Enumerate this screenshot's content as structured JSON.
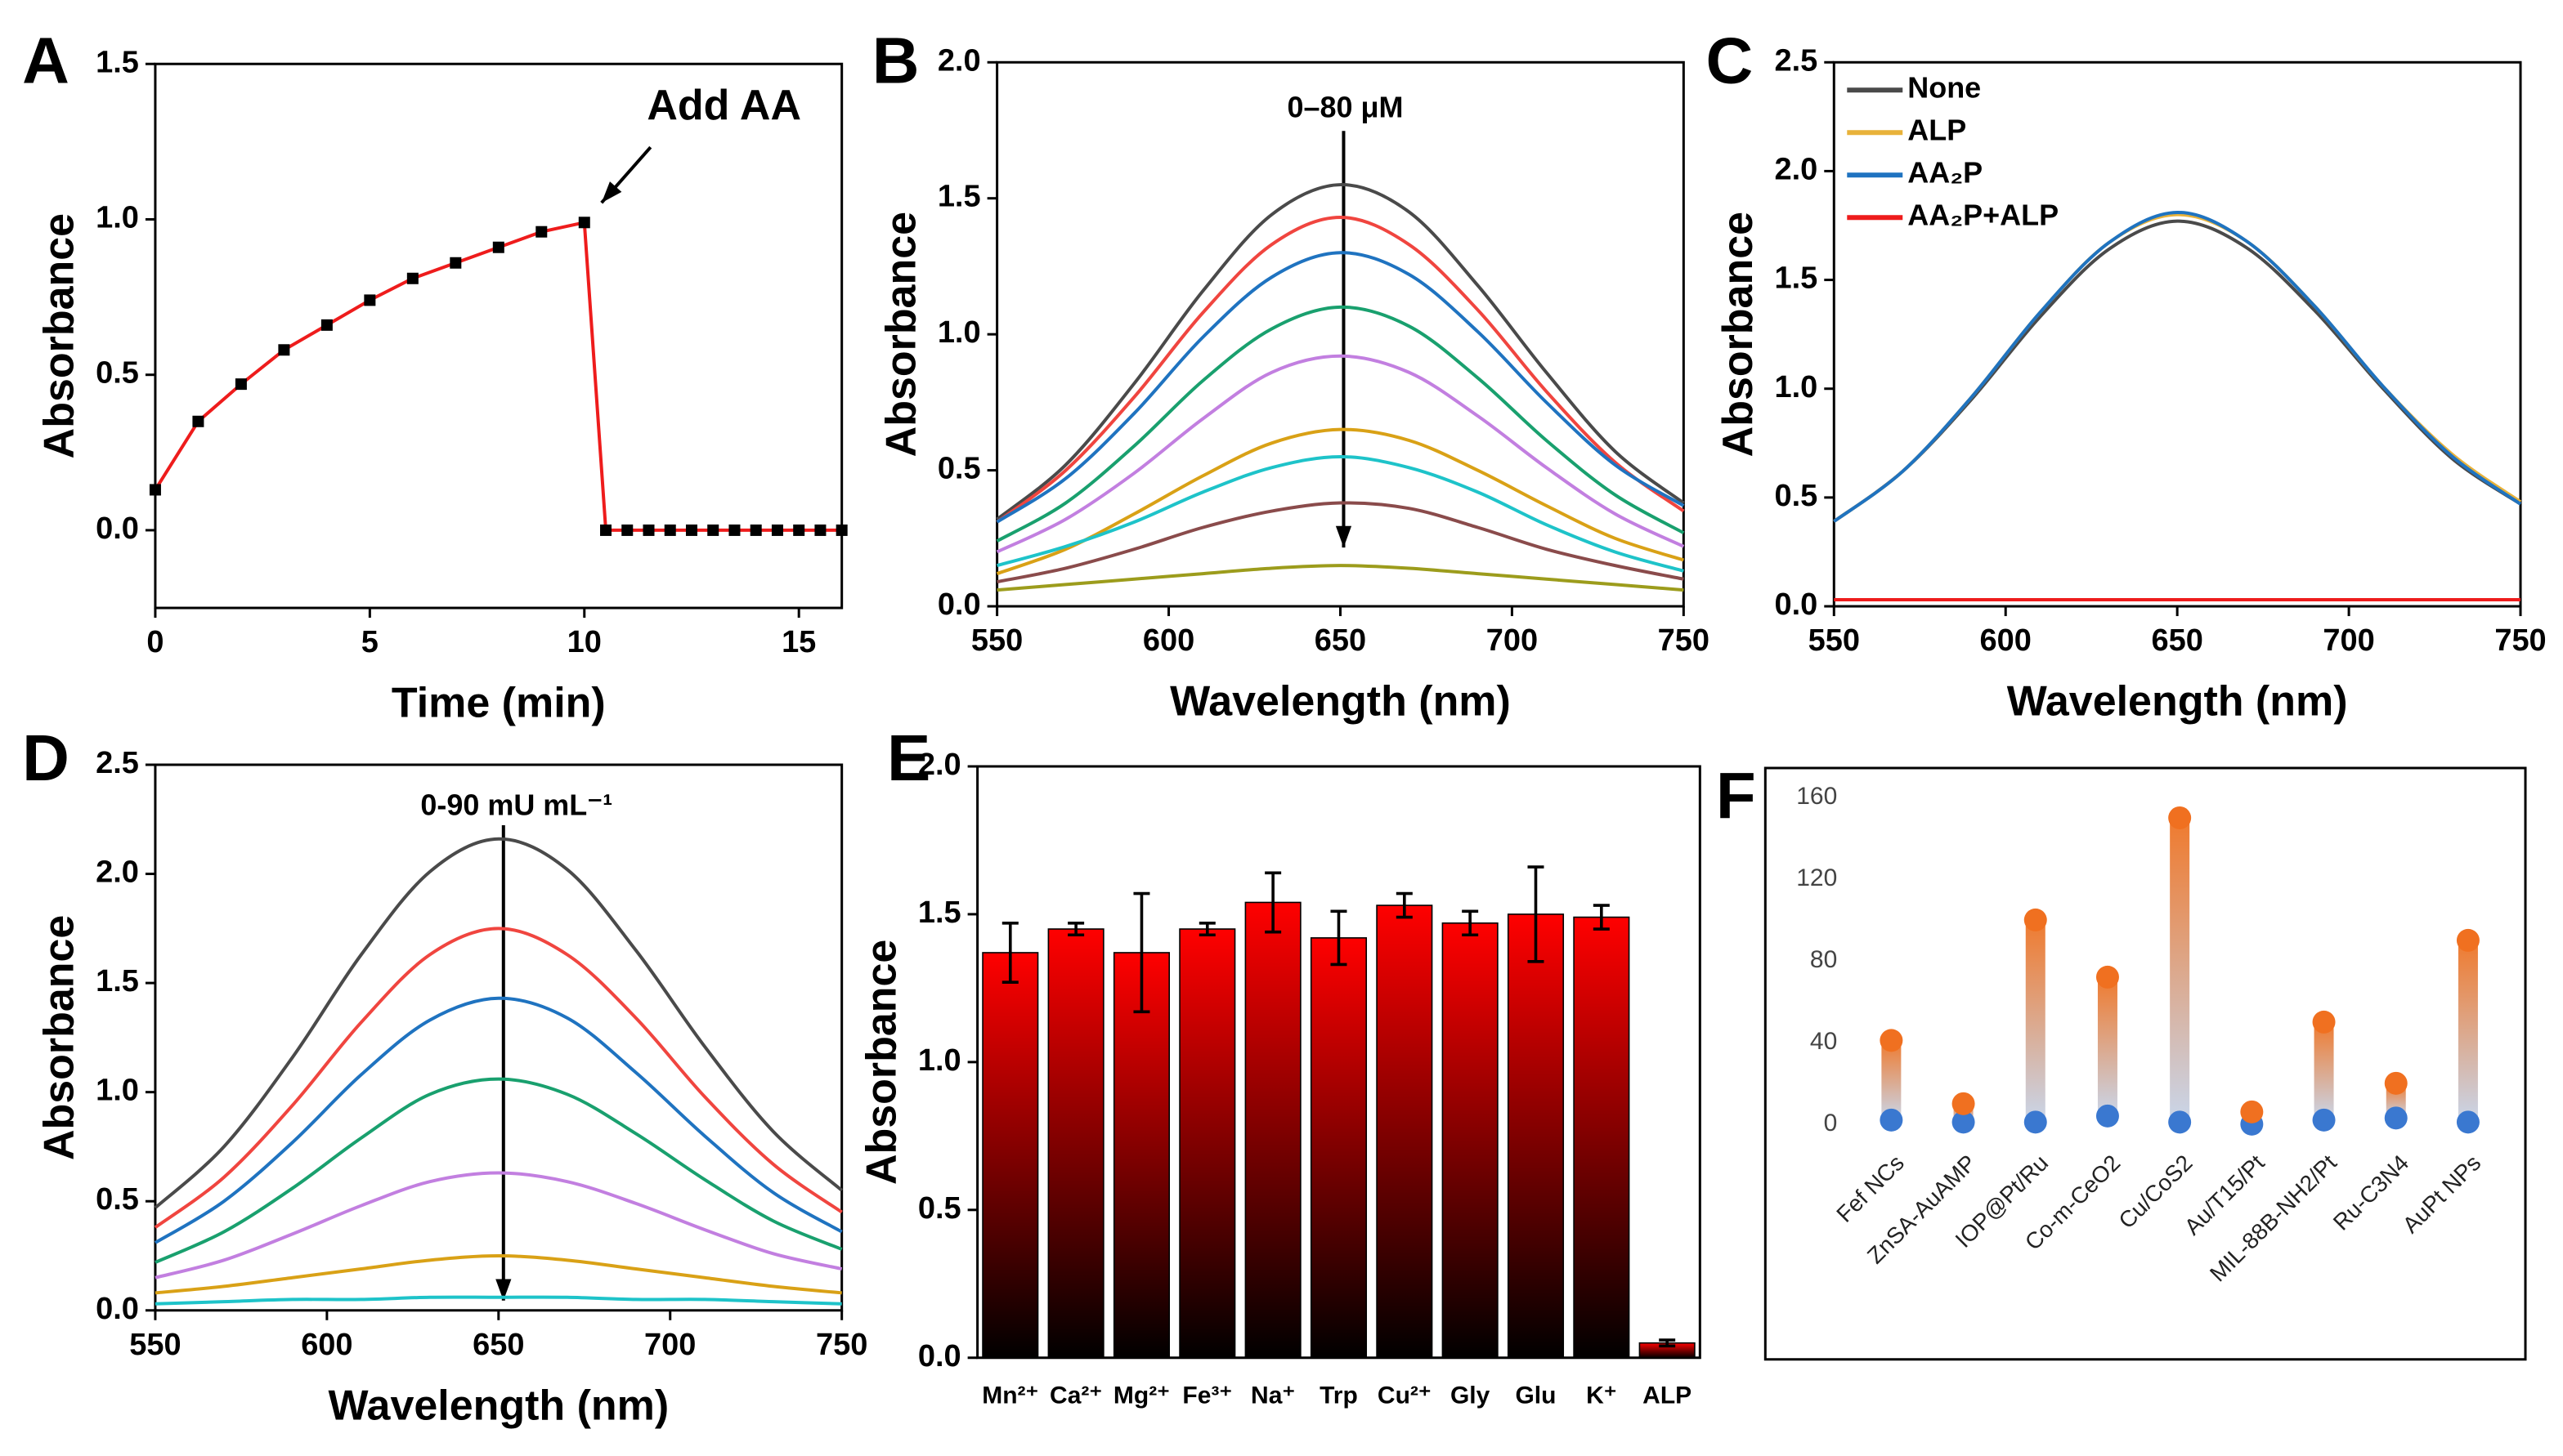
{
  "chart_data": [
    {
      "type": "line",
      "label": "A",
      "xlabel": "Time (min)",
      "ylabel": "Absorbance",
      "annotation": "Add AA",
      "markers": true,
      "marker_color": "#000000",
      "x": [
        0,
        1,
        2,
        3,
        4,
        5,
        6,
        7,
        8,
        9,
        10,
        10.5,
        11,
        11.5,
        12,
        12.5,
        13,
        13.5,
        14,
        14.5,
        15,
        15.5,
        16
      ],
      "series": [
        {
          "color": "#ee1c1c",
          "values": [
            0.13,
            0.35,
            0.47,
            0.58,
            0.66,
            0.74,
            0.81,
            0.86,
            0.91,
            0.96,
            0.99,
            0,
            0,
            0,
            0,
            0,
            0,
            0,
            0,
            0,
            0,
            0,
            0
          ]
        }
      ],
      "xlim": [
        0,
        16
      ],
      "xticks": [
        0,
        5,
        10,
        15
      ],
      "ylim": [
        -0.25,
        1.5
      ],
      "yticks": [
        {
          "value": 0,
          "label": "0.0"
        },
        0.5,
        {
          "value": 1,
          "label": "1.0"
        },
        1.5
      ]
    },
    {
      "type": "line",
      "label": "B",
      "xlabel": "Wavelength (nm)",
      "ylabel": "Absorbance",
      "annotation": "0–80 μM",
      "smooth": true,
      "x": [
        550,
        570,
        590,
        610,
        630,
        650,
        670,
        690,
        710,
        730,
        750
      ],
      "series": [
        {
          "color": "#4a4a4a",
          "values": [
            0.32,
            0.52,
            0.82,
            1.16,
            1.44,
            1.55,
            1.45,
            1.18,
            0.86,
            0.57,
            0.38
          ]
        },
        {
          "color": "#f0453f",
          "values": [
            0.31,
            0.5,
            0.77,
            1.08,
            1.33,
            1.43,
            1.33,
            1.09,
            0.79,
            0.53,
            0.35
          ]
        },
        {
          "color": "#1f73c0",
          "values": [
            0.31,
            0.47,
            0.71,
            0.99,
            1.21,
            1.3,
            1.22,
            1.01,
            0.75,
            0.52,
            0.37
          ]
        },
        {
          "color": "#19a06e",
          "values": [
            0.24,
            0.38,
            0.59,
            0.83,
            1.02,
            1.1,
            1.03,
            0.84,
            0.61,
            0.41,
            0.27
          ]
        },
        {
          "color": "#c27fe0",
          "values": [
            0.2,
            0.32,
            0.49,
            0.69,
            0.86,
            0.92,
            0.86,
            0.7,
            0.51,
            0.34,
            0.22
          ]
        },
        {
          "color": "#d9a116",
          "values": [
            0.12,
            0.21,
            0.34,
            0.48,
            0.6,
            0.65,
            0.61,
            0.5,
            0.37,
            0.25,
            0.17
          ]
        },
        {
          "color": "#1ec3c9",
          "values": [
            0.15,
            0.22,
            0.31,
            0.42,
            0.51,
            0.55,
            0.51,
            0.42,
            0.3,
            0.2,
            0.13
          ]
        },
        {
          "color": "#8a4b4b",
          "values": [
            0.09,
            0.14,
            0.21,
            0.29,
            0.35,
            0.38,
            0.36,
            0.29,
            0.21,
            0.15,
            0.1
          ]
        },
        {
          "color": "#9c9c1c",
          "values": [
            0.06,
            0.08,
            0.1,
            0.12,
            0.14,
            0.15,
            0.14,
            0.12,
            0.1,
            0.08,
            0.06
          ]
        }
      ],
      "xlim": [
        550,
        750
      ],
      "xticks": [
        550,
        600,
        650,
        700,
        750
      ],
      "ylim": [
        0,
        2
      ],
      "yticks": [
        {
          "value": 0,
          "label": "0.0"
        },
        0.5,
        {
          "value": 1,
          "label": "1.0"
        },
        1.5,
        {
          "value": 2,
          "label": "2.0"
        }
      ]
    },
    {
      "type": "line",
      "label": "C",
      "xlabel": "Wavelength (nm)",
      "ylabel": "Absorbance",
      "smooth": true,
      "legend": "upper left",
      "x": [
        550,
        570,
        590,
        610,
        630,
        650,
        670,
        690,
        710,
        730,
        750
      ],
      "series": [
        {
          "name": "None",
          "color": "#4a4a4a",
          "values": [
            0.39,
            0.62,
            0.95,
            1.33,
            1.64,
            1.77,
            1.65,
            1.36,
            1.0,
            0.68,
            0.47
          ]
        },
        {
          "name": "ALP",
          "color": "#e8b23a",
          "values": [
            0.39,
            0.62,
            0.96,
            1.35,
            1.67,
            1.8,
            1.68,
            1.38,
            1.01,
            0.7,
            0.48
          ]
        },
        {
          "name": "AA₂P",
          "color": "#1f73c0",
          "values": [
            0.39,
            0.62,
            0.96,
            1.35,
            1.67,
            1.81,
            1.68,
            1.38,
            1.01,
            0.69,
            0.47
          ]
        },
        {
          "name": "AA₂P+ALP",
          "color": "#ee1c1c",
          "values": [
            0.03,
            0.03,
            0.03,
            0.03,
            0.03,
            0.03,
            0.03,
            0.03,
            0.03,
            0.03,
            0.03
          ]
        }
      ],
      "xlim": [
        550,
        750
      ],
      "xticks": [
        550,
        600,
        650,
        700,
        750
      ],
      "ylim": [
        0,
        2.5
      ],
      "yticks": [
        {
          "value": 0,
          "label": "0.0"
        },
        0.5,
        {
          "value": 1,
          "label": "1.0"
        },
        1.5,
        {
          "value": 2,
          "label": "2.0"
        },
        2.5
      ]
    },
    {
      "type": "line",
      "label": "D",
      "xlabel": "Wavelength (nm)",
      "ylabel": "Absorbance",
      "annotation": "0-90 mU mL⁻¹",
      "smooth": true,
      "x": [
        550,
        570,
        590,
        610,
        630,
        650,
        670,
        690,
        710,
        730,
        750
      ],
      "series": [
        {
          "color": "#4a4a4a",
          "values": [
            0.47,
            0.75,
            1.16,
            1.63,
            2.01,
            2.16,
            2.02,
            1.65,
            1.21,
            0.82,
            0.55
          ]
        },
        {
          "color": "#f0453f",
          "values": [
            0.38,
            0.61,
            0.94,
            1.32,
            1.63,
            1.75,
            1.63,
            1.34,
            0.98,
            0.67,
            0.45
          ]
        },
        {
          "color": "#1f73c0",
          "values": [
            0.31,
            0.5,
            0.77,
            1.08,
            1.33,
            1.43,
            1.34,
            1.09,
            0.8,
            0.54,
            0.36
          ]
        },
        {
          "color": "#19a06e",
          "values": [
            0.22,
            0.36,
            0.56,
            0.79,
            0.99,
            1.06,
            0.99,
            0.81,
            0.6,
            0.41,
            0.28
          ]
        },
        {
          "color": "#c27fe0",
          "values": [
            0.15,
            0.23,
            0.35,
            0.48,
            0.59,
            0.63,
            0.59,
            0.49,
            0.37,
            0.26,
            0.19
          ]
        },
        {
          "color": "#d9a116",
          "values": [
            0.08,
            0.11,
            0.15,
            0.19,
            0.23,
            0.25,
            0.23,
            0.19,
            0.15,
            0.11,
            0.08
          ]
        },
        {
          "color": "#1ec3c9",
          "values": [
            0.03,
            0.04,
            0.05,
            0.05,
            0.06,
            0.06,
            0.06,
            0.05,
            0.05,
            0.04,
            0.03
          ]
        }
      ],
      "xlim": [
        550,
        750
      ],
      "xticks": [
        550,
        600,
        650,
        700,
        750
      ],
      "ylim": [
        0,
        2.5
      ],
      "yticks": [
        {
          "value": 0,
          "label": "0.0"
        },
        0.5,
        {
          "value": 1,
          "label": "1.0"
        },
        1.5,
        {
          "value": 2,
          "label": "2.0"
        },
        2.5
      ]
    },
    {
      "type": "bar",
      "label": "E",
      "ylabel": "Absorbance",
      "gradient": [
        "#ff0000",
        "#000000"
      ],
      "error_color": "#000000",
      "categories": [
        "Mn²⁺",
        "Ca²⁺",
        "Mg²⁺",
        "Fe³⁺",
        "Na⁺",
        "Trp",
        "Cu²⁺",
        "Gly",
        "Glu",
        "K⁺",
        "ALP"
      ],
      "values": [
        1.37,
        1.45,
        1.37,
        1.45,
        1.54,
        1.42,
        1.53,
        1.47,
        1.5,
        1.49,
        0.05
      ],
      "errors": [
        0.1,
        0.02,
        0.2,
        0.02,
        0.1,
        0.09,
        0.04,
        0.04,
        0.16,
        0.04,
        0.01
      ],
      "ylim": [
        0,
        2
      ],
      "yticks": [
        {
          "value": 0,
          "label": "0.0"
        },
        0.5,
        {
          "value": 1,
          "label": "1.0"
        },
        1.5,
        {
          "value": 2,
          "label": "2.0"
        }
      ]
    },
    {
      "type": "dumbbell",
      "label": "F",
      "tick_marks": false,
      "bar_gradient": [
        "#ef7a2e",
        "#c9d6ea"
      ],
      "categories": [
        "Fef NCs",
        "ZnSA-AuAMP",
        "IOP@Pt/Ru",
        "Co-m-CeO2",
        "Cu/CoS2",
        "Au/T15/Pt",
        "MIL-88B-NH2/Pt",
        "Ru-C3N4",
        "AuPt NPs"
      ],
      "series": [
        {
          "color": "#f07020",
          "values": [
            41,
            10,
            100,
            72,
            150,
            6,
            50,
            20,
            90
          ]
        },
        {
          "color": "#3a78d0",
          "values": [
            2,
            1,
            1,
            4,
            1,
            0,
            2,
            3,
            1
          ]
        }
      ],
      "ylim": [
        0,
        160
      ],
      "yticks": [
        0,
        40,
        80,
        120,
        160
      ]
    }
  ]
}
